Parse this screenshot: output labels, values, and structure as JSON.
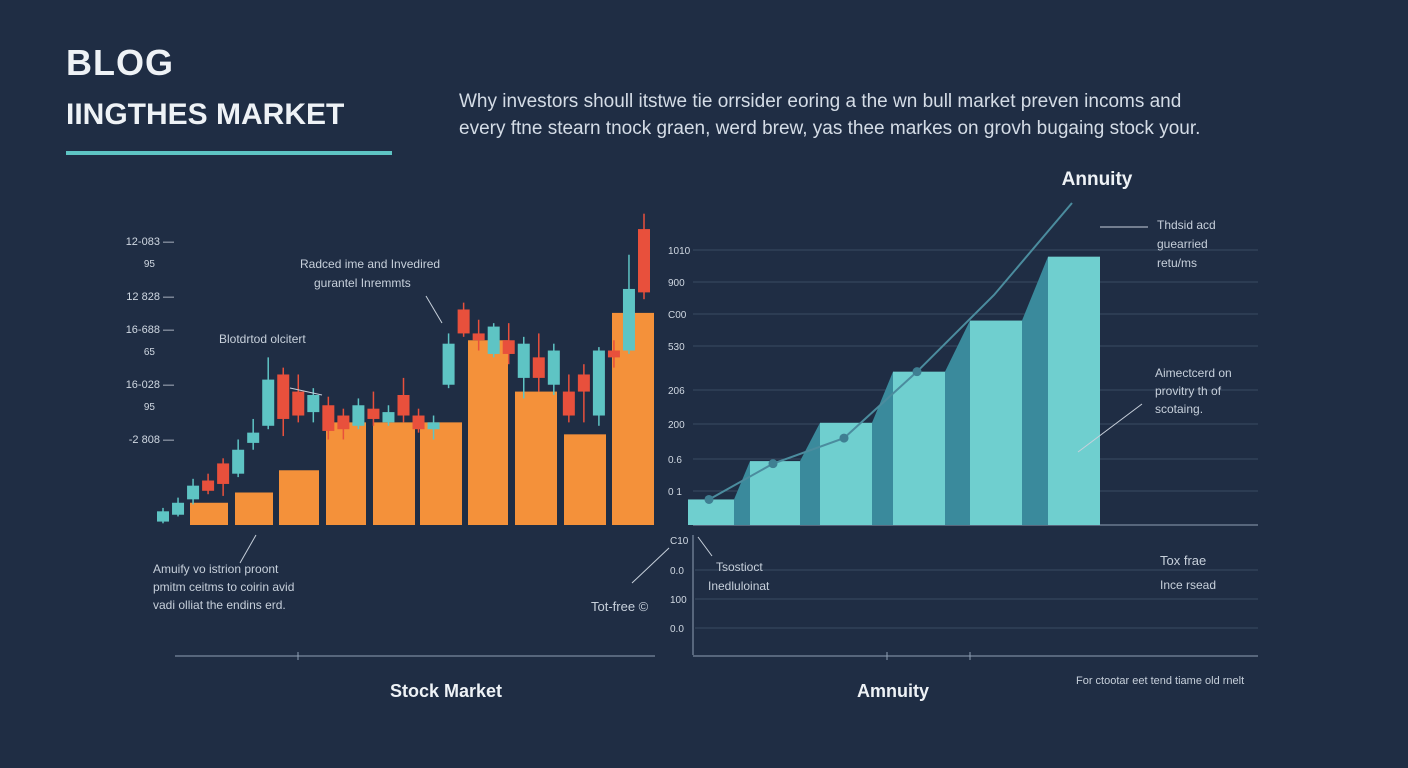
{
  "header": {
    "blog_label": "BLOG",
    "subtitle": "IINGTHES MARKET",
    "intro_line1": "Why investors shoull itstwe tie orrsider eoring a the wn bull market preven incoms and",
    "intro_line2": "every ftne stearn tnock graen, werd brew, yas thee markes on grovh bugaing stock your."
  },
  "colors": {
    "background": "#1f2d44",
    "accent": "#5ec4c4",
    "bullish": "#5ec4c4",
    "bearish": "#e8503c",
    "stock_bar": "#f4913a",
    "annuity_bar": "#6fcfcf",
    "annuity_side": "#3a8a9c"
  },
  "chart_data": [
    {
      "type": "bar",
      "caption": "Stock Market",
      "y_tick_labels": [
        {
          "main": "12-083 —",
          "sub": "95"
        },
        {
          "main": "12 828 —",
          "sub": ""
        },
        {
          "main": "16-688 —",
          "sub": "65"
        },
        {
          "main": "16-028 —",
          "sub": "95"
        },
        {
          "main": "-2 808 —",
          "sub": ""
        }
      ],
      "bar_values": [
        1.3,
        1.9,
        3.2,
        6.0,
        6.0,
        6.0,
        10.8,
        7.8,
        5.3,
        12.4
      ],
      "candles": [
        {
          "o": 0.2,
          "c": 0.8,
          "h": 1.0,
          "l": 0.1,
          "up": true
        },
        {
          "o": 0.6,
          "c": 1.3,
          "h": 1.6,
          "l": 0.5,
          "up": true
        },
        {
          "o": 1.5,
          "c": 2.3,
          "h": 2.7,
          "l": 1.2,
          "up": true
        },
        {
          "o": 2.6,
          "c": 2.0,
          "h": 3.0,
          "l": 1.8,
          "up": false
        },
        {
          "o": 2.4,
          "c": 3.6,
          "h": 3.9,
          "l": 1.7,
          "up": false
        },
        {
          "o": 3.0,
          "c": 4.4,
          "h": 5.0,
          "l": 2.8,
          "up": true
        },
        {
          "o": 4.8,
          "c": 5.4,
          "h": 6.2,
          "l": 4.4,
          "up": true
        },
        {
          "o": 5.8,
          "c": 8.5,
          "h": 9.8,
          "l": 5.6,
          "up": true
        },
        {
          "o": 8.8,
          "c": 6.2,
          "h": 9.2,
          "l": 5.2,
          "up": false
        },
        {
          "o": 6.4,
          "c": 7.8,
          "h": 8.8,
          "l": 6.0,
          "up": false
        },
        {
          "o": 6.6,
          "c": 7.6,
          "h": 8.0,
          "l": 6.0,
          "up": true
        },
        {
          "o": 7.0,
          "c": 5.5,
          "h": 7.5,
          "l": 5.0,
          "up": false
        },
        {
          "o": 5.6,
          "c": 6.4,
          "h": 6.8,
          "l": 5.0,
          "up": false
        },
        {
          "o": 5.8,
          "c": 7.0,
          "h": 7.4,
          "l": 5.6,
          "up": true
        },
        {
          "o": 6.2,
          "c": 6.8,
          "h": 7.8,
          "l": 5.8,
          "up": false
        },
        {
          "o": 6.0,
          "c": 6.6,
          "h": 7.0,
          "l": 5.8,
          "up": true
        },
        {
          "o": 6.4,
          "c": 7.6,
          "h": 8.6,
          "l": 6.0,
          "up": false
        },
        {
          "o": 5.6,
          "c": 6.4,
          "h": 6.8,
          "l": 5.4,
          "up": false
        },
        {
          "o": 5.6,
          "c": 6.0,
          "h": 6.4,
          "l": 5.0,
          "up": true
        },
        {
          "o": 8.2,
          "c": 10.6,
          "h": 11.2,
          "l": 8.0,
          "up": true
        },
        {
          "o": 11.2,
          "c": 12.6,
          "h": 13.0,
          "l": 11.0,
          "up": false
        },
        {
          "o": 10.8,
          "c": 11.2,
          "h": 12.0,
          "l": 10.2,
          "up": false
        },
        {
          "o": 10.0,
          "c": 11.6,
          "h": 11.8,
          "l": 9.8,
          "up": true
        },
        {
          "o": 10.8,
          "c": 10.0,
          "h": 11.8,
          "l": 9.4,
          "up": false
        },
        {
          "o": 8.6,
          "c": 10.6,
          "h": 11.0,
          "l": 7.4,
          "up": true
        },
        {
          "o": 8.6,
          "c": 9.8,
          "h": 11.2,
          "l": 7.8,
          "up": false
        },
        {
          "o": 8.2,
          "c": 10.2,
          "h": 10.6,
          "l": 7.6,
          "up": true
        },
        {
          "o": 7.8,
          "c": 6.4,
          "h": 8.8,
          "l": 6.0,
          "up": false
        },
        {
          "o": 8.8,
          "c": 7.8,
          "h": 9.4,
          "l": 6.0,
          "up": false
        },
        {
          "o": 6.4,
          "c": 10.2,
          "h": 10.4,
          "l": 5.8,
          "up": true
        },
        {
          "o": 10.2,
          "c": 9.8,
          "h": 10.8,
          "l": 9.2,
          "up": false
        },
        {
          "o": 10.2,
          "c": 13.8,
          "h": 15.8,
          "l": 10.0,
          "up": true
        },
        {
          "o": 13.6,
          "c": 17.3,
          "h": 18.2,
          "l": 13.2,
          "up": false
        }
      ],
      "annotations": {
        "top_line1": "Radced ime and Invedired",
        "top_line2": "gurantel Inremmts",
        "left_callout": "Blotdrtod olcitert",
        "bottom_line1": "Amuify vo istrion proont",
        "bottom_line2": "pmitm ceitms to coirin avid",
        "bottom_line3": "vadi olliat the endins erd.",
        "tax_free": "Tot-free ©"
      }
    },
    {
      "type": "bar",
      "title": "Annuity",
      "caption": "Amnuity",
      "y_tick_labels": [
        "1010",
        "900",
        "C00",
        "530",
        "206",
        "200",
        "0.6",
        "0 1"
      ],
      "values": [
        1.0,
        2.5,
        4.0,
        6.0,
        8.0,
        10.5
      ],
      "trend_points": [
        1.0,
        2.4,
        3.4,
        6.0,
        9.0,
        12.6
      ],
      "lower_tick_labels": [
        "C10",
        "0.0",
        "100",
        "0.0"
      ],
      "annotations": {
        "right_top_line1": "Thdsid acd",
        "right_top_line2": "guearried",
        "right_top_line3": "retu/ms",
        "right_mid_line1": "Aimectcerd on",
        "right_mid_line2": "provitry th of",
        "right_mid_line3": "scotaing.",
        "lower_left_line1": "Tsostioct",
        "lower_left_line2": "Inedluloinat",
        "lower_right_line1": "Tox frae",
        "lower_right_line2": "Ince rsead",
        "footnote": "For ctootar eet tend tiame old rnelt"
      }
    }
  ]
}
